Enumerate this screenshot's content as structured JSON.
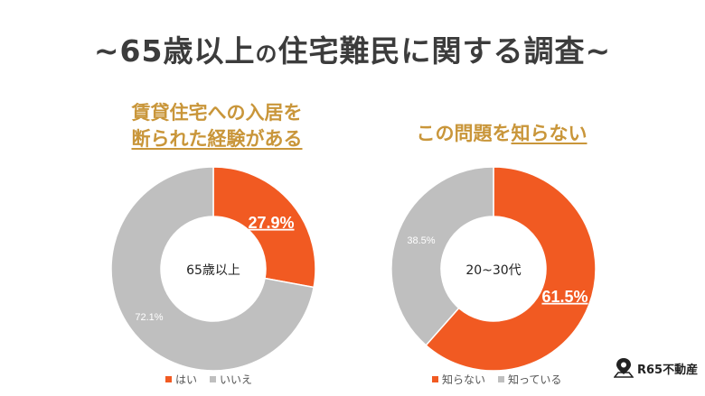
{
  "title": {
    "prefix": "~65歳以上",
    "connector": "の",
    "suffix": "住宅難民に関する調査~"
  },
  "subtitle_left": {
    "line1": "賃貸住宅への入居を",
    "line2": "断られた経験がある"
  },
  "subtitle_right": {
    "before": "この問題を",
    "underlined": "知らない"
  },
  "colors": {
    "orange": "#f15a22",
    "gray": "#bfbfbf",
    "gold": "#c9963a"
  },
  "chart_data": [
    {
      "type": "pie",
      "donut": true,
      "center_label": "65歳以上",
      "slices": [
        {
          "label": "はい",
          "value": 27.9,
          "display": "27.9%",
          "color": "#f15a22"
        },
        {
          "label": "いいえ",
          "value": 72.1,
          "display": "72.1%",
          "color": "#bfbfbf"
        }
      ]
    },
    {
      "type": "pie",
      "donut": true,
      "center_label": "20~30代",
      "slices": [
        {
          "label": "知らない",
          "value": 61.5,
          "display": "61.5%",
          "color": "#f15a22"
        },
        {
          "label": "知っている",
          "value": 38.5,
          "display": "38.5%",
          "color": "#bfbfbf"
        }
      ]
    }
  ],
  "logo": {
    "text": "R65不動産",
    "icon": "map-pin-icon"
  }
}
